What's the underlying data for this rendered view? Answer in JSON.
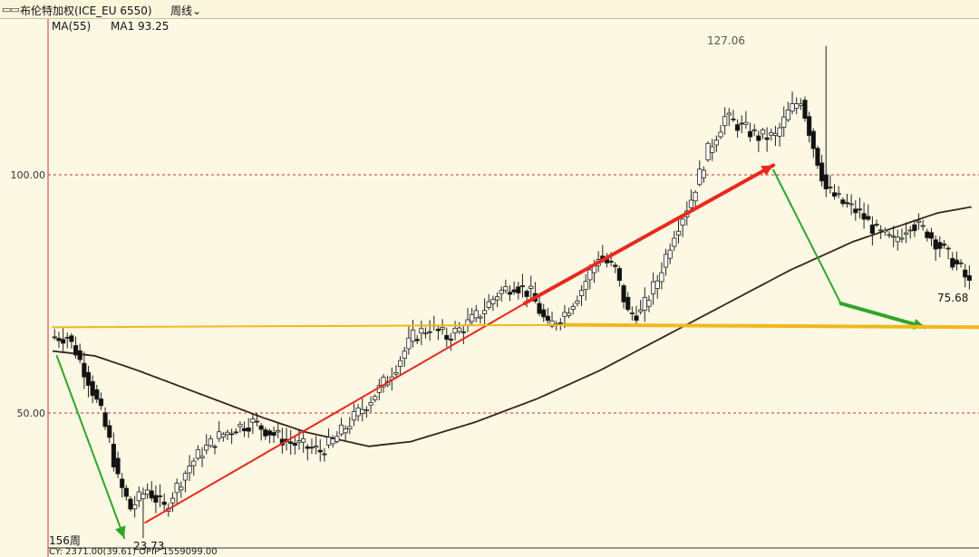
{
  "header": {
    "icon": "window-controls-icon",
    "title": "布伦特加权(ICE_EU 6550)",
    "period_label": "周线",
    "period_dropdown_icon": "chevron-down-icon"
  },
  "legend": {
    "ma_label": "MA(55)",
    "ma1_label": "MA1 93.25"
  },
  "footer": {
    "bar_count_label": "156周",
    "status_line": "CY: 2371.00(39.61)  OPIP 1559099.00"
  },
  "annotations": {
    "high_label": "127.06",
    "low_label": "23.73",
    "last_label": "75.68"
  },
  "colors": {
    "background": "#fdf8e3",
    "up_candle": "#ffffff",
    "down_candle": "#111111",
    "ma_line": "#3b2220",
    "trend_up": "#e8281e",
    "trend_down": "#2fa52a",
    "support": "#f0b81c",
    "grid": "#c0392b"
  },
  "chart_data": {
    "type": "candlestick",
    "title": "布伦特加权(ICE_EU 6550)",
    "period": "周线",
    "y_ticks": [
      50,
      100
    ],
    "y_tick_labels": [
      "50.00",
      "100.00"
    ],
    "ylim": [
      20,
      140
    ],
    "n_bars": 156,
    "indicators": [
      {
        "name": "MA(55)",
        "last_value": 93.25
      }
    ],
    "key_values": {
      "high": 127.06,
      "low": 23.73,
      "last": 75.68
    },
    "anchors": [
      [
        0,
        66
      ],
      [
        4,
        66
      ],
      [
        6,
        63
      ],
      [
        9,
        57
      ],
      [
        12,
        50
      ],
      [
        14,
        44
      ],
      [
        16,
        36
      ],
      [
        19,
        30
      ],
      [
        21,
        32
      ],
      [
        23,
        34
      ],
      [
        25,
        32
      ],
      [
        27,
        30
      ],
      [
        29,
        33
      ],
      [
        31,
        36
      ],
      [
        33,
        39
      ],
      [
        36,
        42
      ],
      [
        40,
        45
      ],
      [
        44,
        47
      ],
      [
        48,
        48
      ],
      [
        52,
        46
      ],
      [
        56,
        44
      ],
      [
        60,
        43
      ],
      [
        64,
        42
      ],
      [
        67,
        44
      ],
      [
        70,
        47
      ],
      [
        74,
        51
      ],
      [
        78,
        55
      ],
      [
        82,
        60
      ],
      [
        86,
        66
      ],
      [
        90,
        68
      ],
      [
        94,
        66
      ],
      [
        98,
        68
      ],
      [
        102,
        71
      ],
      [
        106,
        75
      ],
      [
        110,
        77
      ],
      [
        114,
        75
      ],
      [
        118,
        68
      ],
      [
        122,
        71
      ],
      [
        126,
        76
      ],
      [
        130,
        83
      ],
      [
        134,
        80
      ],
      [
        137,
        71
      ],
      [
        140,
        71
      ],
      [
        144,
        78
      ],
      [
        148,
        88
      ],
      [
        152,
        95
      ],
      [
        156,
        105
      ],
      [
        160,
        112
      ],
      [
        164,
        110
      ],
      [
        168,
        108
      ],
      [
        172,
        108
      ],
      [
        175,
        113
      ],
      [
        178,
        116
      ],
      [
        181,
        106
      ],
      [
        184,
        97
      ],
      [
        188,
        94
      ],
      [
        192,
        92
      ],
      [
        196,
        88
      ],
      [
        200,
        86
      ],
      [
        204,
        90
      ],
      [
        208,
        88
      ],
      [
        212,
        84
      ],
      [
        216,
        80
      ],
      [
        218,
        77
      ]
    ],
    "ma_anchors": [
      [
        0,
        63
      ],
      [
        10,
        62
      ],
      [
        20,
        59
      ],
      [
        35,
        54
      ],
      [
        50,
        49
      ],
      [
        60,
        46
      ],
      [
        70,
        44
      ],
      [
        75,
        43
      ],
      [
        85,
        44
      ],
      [
        100,
        48
      ],
      [
        115,
        53
      ],
      [
        130,
        59
      ],
      [
        145,
        66
      ],
      [
        160,
        73
      ],
      [
        175,
        80
      ],
      [
        190,
        86
      ],
      [
        200,
        89
      ],
      [
        210,
        92
      ],
      [
        218,
        93.25
      ]
    ],
    "trend_lines": [
      {
        "type": "down",
        "from": [
          1,
          62
        ],
        "to": [
          17,
          23.73
        ],
        "weight": "thin"
      },
      {
        "type": "up",
        "from": [
          22,
          27
        ],
        "to": [
          112,
          73
        ],
        "weight": "thin"
      },
      {
        "type": "up",
        "from": [
          112,
          73
        ],
        "to": [
          171,
          102
        ],
        "weight": "thick"
      },
      {
        "type": "down",
        "from": [
          171,
          101
        ],
        "to": [
          187,
          73
        ],
        "weight": "thin"
      },
      {
        "type": "down",
        "from": [
          187,
          73
        ],
        "to": [
          207,
          68
        ],
        "weight": "thick"
      },
      {
        "type": "support",
        "from": [
          0,
          68
        ],
        "to": [
          122,
          68.5
        ],
        "weight": "thin"
      },
      {
        "type": "support",
        "from": [
          122,
          68.5
        ],
        "to": [
          224,
          68
        ],
        "weight": "thick"
      }
    ],
    "spikes": {
      "21": 23.73,
      "183": 127.06
    }
  }
}
